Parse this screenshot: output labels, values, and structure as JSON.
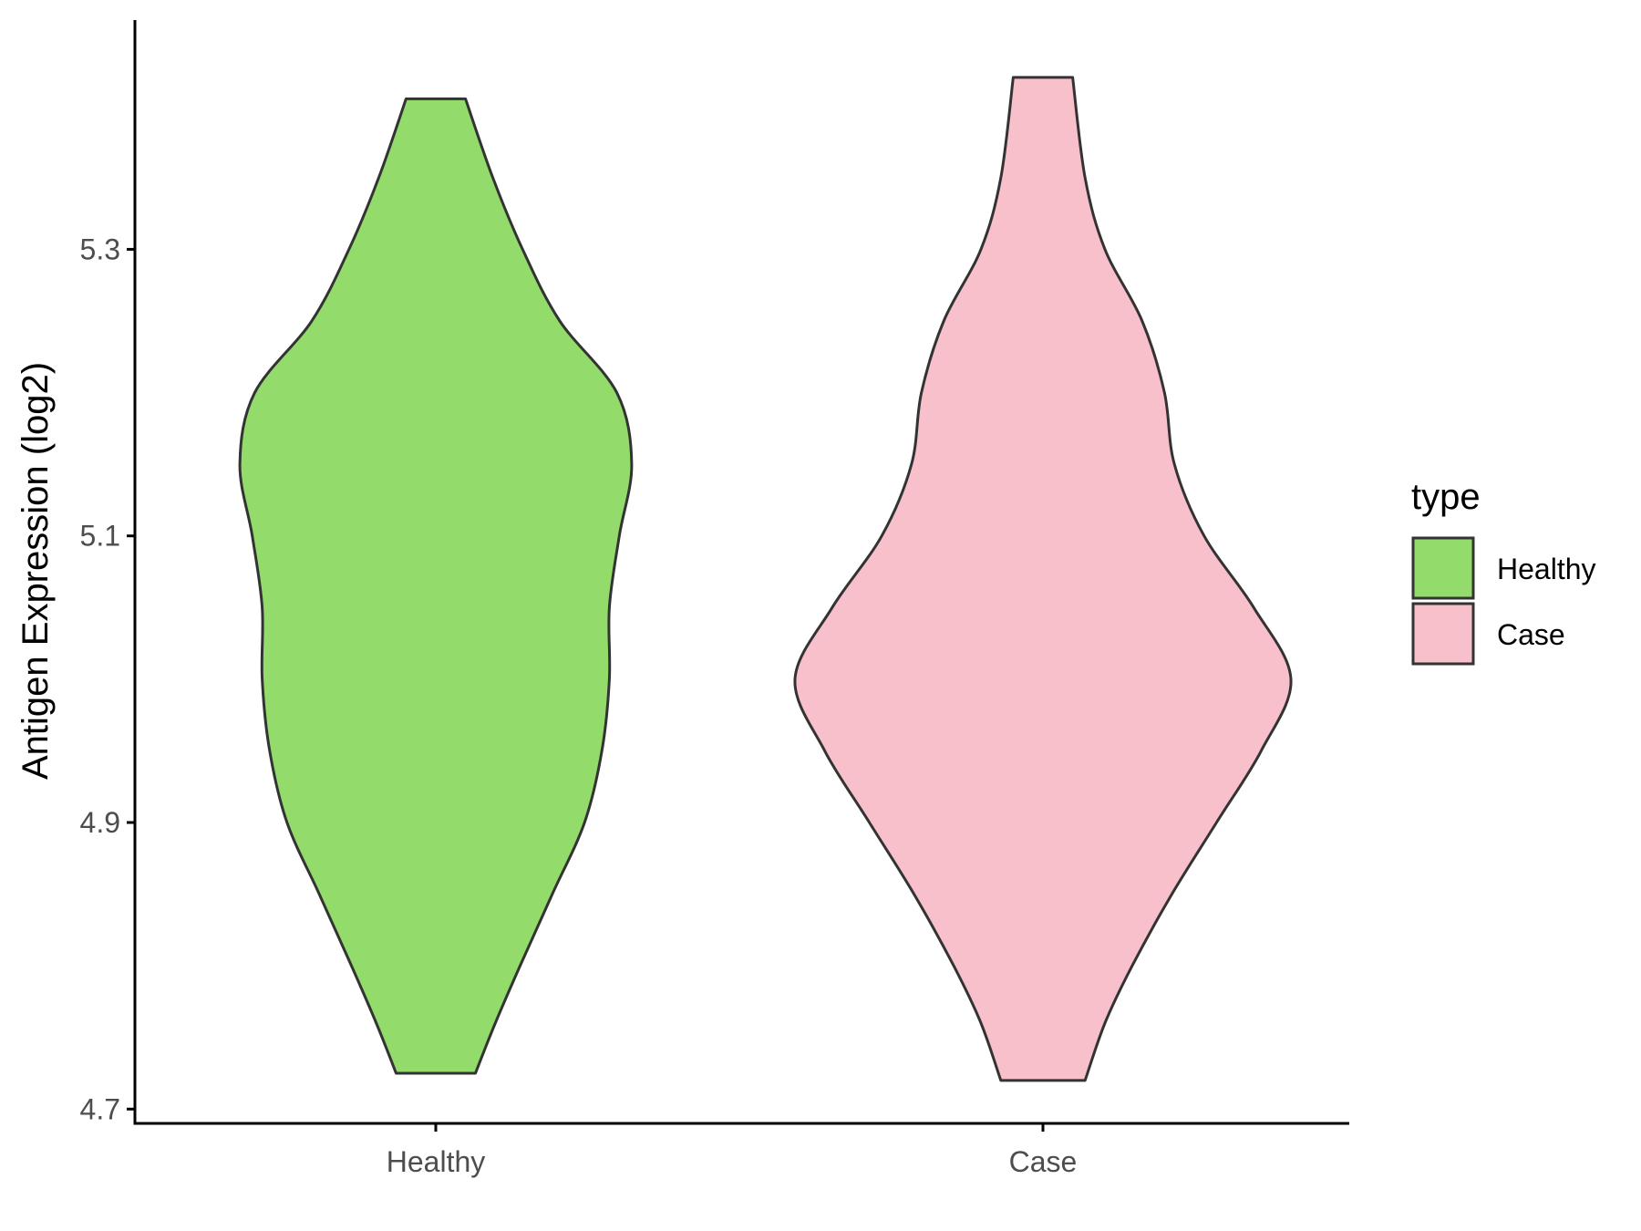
{
  "chart_data": {
    "type": "violin",
    "title": "",
    "xlabel": "",
    "ylabel": "Antigen Expression (log2)",
    "ylim": [
      4.69,
      5.46
    ],
    "yticks": [
      "4.7",
      "4.9",
      "5.1",
      "5.3"
    ],
    "categories": [
      "Healthy",
      "Case"
    ],
    "legend": {
      "title": "type",
      "position": "right",
      "entries": [
        {
          "label": "Healthy",
          "color": "#93dc6b"
        },
        {
          "label": "Case",
          "color": "#f7c0cb"
        }
      ]
    },
    "series": [
      {
        "name": "Healthy",
        "color": "#93dc6b",
        "min": 4.725,
        "max": 5.405,
        "density_profile": [
          [
            4.725,
            0.16
          ],
          [
            4.76,
            0.24
          ],
          [
            4.8,
            0.34
          ],
          [
            4.85,
            0.47
          ],
          [
            4.9,
            0.6
          ],
          [
            4.95,
            0.67
          ],
          [
            5.0,
            0.7
          ],
          [
            5.05,
            0.7
          ],
          [
            5.1,
            0.74
          ],
          [
            5.15,
            0.79
          ],
          [
            5.2,
            0.73
          ],
          [
            5.25,
            0.5
          ],
          [
            5.3,
            0.35
          ],
          [
            5.35,
            0.23
          ],
          [
            5.405,
            0.12
          ]
        ]
      },
      {
        "name": "Case",
        "color": "#f7c0cb",
        "min": 4.72,
        "max": 5.42,
        "density_profile": [
          [
            4.72,
            0.17
          ],
          [
            4.76,
            0.25
          ],
          [
            4.8,
            0.36
          ],
          [
            4.85,
            0.52
          ],
          [
            4.9,
            0.7
          ],
          [
            4.95,
            0.88
          ],
          [
            5.0,
            1.0
          ],
          [
            5.05,
            0.85
          ],
          [
            5.1,
            0.65
          ],
          [
            5.15,
            0.53
          ],
          [
            5.2,
            0.49
          ],
          [
            5.25,
            0.4
          ],
          [
            5.3,
            0.25
          ],
          [
            5.35,
            0.17
          ],
          [
            5.42,
            0.12
          ]
        ]
      }
    ]
  }
}
